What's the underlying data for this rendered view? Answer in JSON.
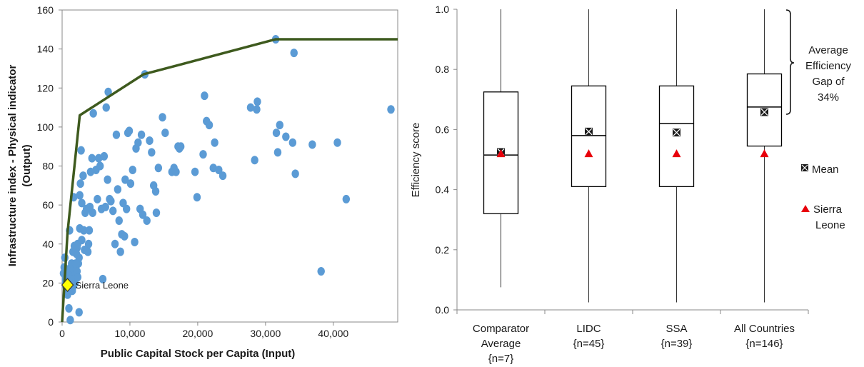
{
  "chart_data": [
    {
      "type": "scatter",
      "xlabel": "Public Capital Stock per Capita (Input)",
      "ylabel": "Infrastructure index - Physical indicator (Output)",
      "ylabel_line1": "Infrastructure index - Physical indicator",
      "ylabel_line2": "(Output)",
      "xlim": [
        0,
        49500
      ],
      "ylim": [
        0,
        160
      ],
      "xticks": [
        0,
        10000,
        20000,
        30000,
        40000
      ],
      "xtick_labels": [
        "0",
        "10,000",
        "20,000",
        "30,000",
        "40,000"
      ],
      "yticks": [
        0,
        20,
        40,
        60,
        80,
        100,
        120,
        140,
        160
      ],
      "ytick_labels": [
        "0",
        "20",
        "40",
        "60",
        "80",
        "100",
        "120",
        "140",
        "160"
      ],
      "grid": false,
      "colors": {
        "points": "#5b9bd5",
        "frontier": "#3e5a1e",
        "highlight": "#ffff00"
      },
      "frontier": [
        [
          0,
          0
        ],
        [
          800,
          46
        ],
        [
          2600,
          106
        ],
        [
          12000,
          127
        ],
        [
          31500,
          145
        ],
        [
          49500,
          145
        ]
      ],
      "highlight": {
        "label": "Sierra Leone",
        "x": 800,
        "y": 19
      },
      "points": [
        [
          200,
          25
        ],
        [
          300,
          28
        ],
        [
          400,
          33
        ],
        [
          500,
          20
        ],
        [
          500,
          22
        ],
        [
          600,
          18
        ],
        [
          700,
          16
        ],
        [
          800,
          14
        ],
        [
          900,
          20
        ],
        [
          1000,
          24
        ],
        [
          1100,
          26
        ],
        [
          1200,
          22
        ],
        [
          1300,
          28
        ],
        [
          1400,
          30
        ],
        [
          1500,
          24
        ],
        [
          1600,
          18
        ],
        [
          1700,
          22
        ],
        [
          1800,
          27
        ],
        [
          1900,
          20
        ],
        [
          2000,
          25
        ],
        [
          2100,
          29
        ],
        [
          2200,
          26
        ],
        [
          2300,
          23
        ],
        [
          2400,
          30
        ],
        [
          2500,
          33
        ],
        [
          1000,
          7
        ],
        [
          1200,
          1
        ],
        [
          2500,
          5
        ],
        [
          1100,
          47
        ],
        [
          1600,
          36
        ],
        [
          1700,
          64
        ],
        [
          1800,
          39
        ],
        [
          2200,
          38
        ],
        [
          2600,
          48
        ],
        [
          2700,
          71
        ],
        [
          2800,
          88
        ],
        [
          2600,
          65
        ],
        [
          2900,
          61
        ],
        [
          3100,
          75
        ],
        [
          3200,
          47
        ],
        [
          3400,
          56
        ],
        [
          3600,
          58
        ],
        [
          3800,
          36
        ],
        [
          3900,
          40
        ],
        [
          4000,
          47
        ],
        [
          4100,
          59
        ],
        [
          4200,
          77
        ],
        [
          4400,
          84
        ],
        [
          4500,
          56
        ],
        [
          4600,
          107
        ],
        [
          5000,
          78
        ],
        [
          5200,
          63
        ],
        [
          5400,
          84
        ],
        [
          5600,
          80
        ],
        [
          5800,
          58
        ],
        [
          6000,
          22
        ],
        [
          6200,
          85
        ],
        [
          6400,
          59
        ],
        [
          6500,
          110
        ],
        [
          6700,
          73
        ],
        [
          6800,
          118
        ],
        [
          7000,
          63
        ],
        [
          7200,
          62
        ],
        [
          7500,
          57
        ],
        [
          7800,
          40
        ],
        [
          8000,
          96
        ],
        [
          8200,
          68
        ],
        [
          8400,
          52
        ],
        [
          8600,
          36
        ],
        [
          8800,
          45
        ],
        [
          9000,
          61
        ],
        [
          9200,
          44
        ],
        [
          9300,
          73
        ],
        [
          9500,
          58
        ],
        [
          9700,
          97
        ],
        [
          9900,
          98
        ],
        [
          10100,
          71
        ],
        [
          10400,
          78
        ],
        [
          10700,
          41
        ],
        [
          10900,
          89
        ],
        [
          11200,
          92
        ],
        [
          11500,
          58
        ],
        [
          11700,
          96
        ],
        [
          11900,
          55
        ],
        [
          12200,
          127
        ],
        [
          12500,
          52
        ],
        [
          12900,
          93
        ],
        [
          13200,
          87
        ],
        [
          13500,
          70
        ],
        [
          13800,
          67
        ],
        [
          13900,
          56
        ],
        [
          14200,
          79
        ],
        [
          14800,
          105
        ],
        [
          15200,
          97
        ],
        [
          16200,
          77
        ],
        [
          16500,
          79
        ],
        [
          16800,
          77
        ],
        [
          17100,
          90
        ],
        [
          17300,
          89
        ],
        [
          17500,
          90
        ],
        [
          19600,
          77
        ],
        [
          19900,
          64
        ],
        [
          20800,
          86
        ],
        [
          21000,
          116
        ],
        [
          21300,
          103
        ],
        [
          21700,
          101
        ],
        [
          22300,
          79
        ],
        [
          22500,
          92
        ],
        [
          23100,
          78
        ],
        [
          23700,
          75
        ],
        [
          27800,
          110
        ],
        [
          28400,
          83
        ],
        [
          28700,
          109
        ],
        [
          28800,
          113
        ],
        [
          31500,
          145
        ],
        [
          31600,
          97
        ],
        [
          31800,
          87
        ],
        [
          32100,
          101
        ],
        [
          33000,
          95
        ],
        [
          34000,
          92
        ],
        [
          34200,
          138
        ],
        [
          34400,
          76
        ],
        [
          36900,
          91
        ],
        [
          38200,
          26
        ],
        [
          40600,
          92
        ],
        [
          41900,
          63
        ],
        [
          48500,
          109
        ],
        [
          2100,
          35
        ],
        [
          2300,
          40
        ],
        [
          2900,
          42
        ],
        [
          3300,
          37
        ],
        [
          1500,
          16
        ],
        [
          1700,
          19
        ],
        [
          2000,
          30
        ]
      ]
    },
    {
      "type": "box",
      "ylabel": "Efficiency score",
      "ylim": [
        0,
        1
      ],
      "yticks": [
        0,
        0.2,
        0.4,
        0.6,
        0.8,
        1.0
      ],
      "ytick_labels": [
        "0.0",
        "0.2",
        "0.4",
        "0.6",
        "0.8",
        "1.0"
      ],
      "grid": false,
      "colors": {
        "box": "#000000",
        "mean": "#1a1a1a",
        "marker": "#e8000b"
      },
      "sierra_leone_score": 0.52,
      "categories": [
        {
          "line1": "Comparator",
          "line2": "Average",
          "line3": "{n=7}",
          "whisker_low": 0.075,
          "q1": 0.32,
          "median": 0.515,
          "q3": 0.725,
          "whisker_high": 1.0,
          "mean": 0.525
        },
        {
          "line1": "LIDC",
          "line2": "{n=45}",
          "line3": "",
          "whisker_low": 0.025,
          "q1": 0.41,
          "median": 0.58,
          "q3": 0.745,
          "whisker_high": 1.0,
          "mean": 0.593
        },
        {
          "line1": "SSA",
          "line2": "{n=39}",
          "line3": "",
          "whisker_low": 0.025,
          "q1": 0.41,
          "median": 0.62,
          "q3": 0.745,
          "whisker_high": 1.0,
          "mean": 0.59
        },
        {
          "line1": "All Countries",
          "line2": "{n=146}",
          "line3": "",
          "whisker_low": 0.025,
          "q1": 0.545,
          "median": 0.675,
          "q3": 0.785,
          "whisker_high": 1.0,
          "mean": 0.658
        }
      ],
      "legend": {
        "mean": "Mean",
        "sierra_line1": "Sierra",
        "sierra_line2": "Leone"
      },
      "annotation": {
        "lines": [
          "Average",
          "Efficiency",
          "Gap of",
          "34%"
        ]
      }
    }
  ]
}
